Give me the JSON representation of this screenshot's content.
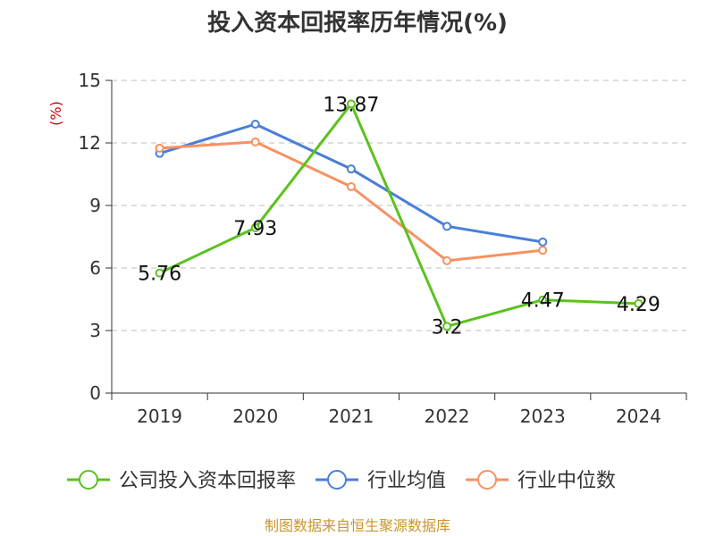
{
  "chart_data": {
    "type": "line",
    "title": "投入资本回报率历年情况(%)",
    "ylabel": "(%)",
    "categories": [
      "2019",
      "2020",
      "2021",
      "2022",
      "2023",
      "2024"
    ],
    "ylim": [
      0,
      15
    ],
    "yticks": [
      "0",
      "3",
      "6",
      "9",
      "12",
      "15"
    ],
    "grid": true,
    "legend_position": "bottom",
    "series": [
      {
        "name": "公司投入资本回报率",
        "color": "#5bc21e",
        "values": [
          5.76,
          7.93,
          13.87,
          3.2,
          4.47,
          4.29
        ],
        "labels": [
          "5.76",
          "7.93",
          "13.87",
          "3.2",
          "4.47",
          "4.29"
        ]
      },
      {
        "name": "行业均值",
        "color": "#4a7fd8",
        "values": [
          11.5,
          12.9,
          10.75,
          8.0,
          7.25,
          null
        ]
      },
      {
        "name": "行业中位数",
        "color": "#f79161",
        "values": [
          11.75,
          12.05,
          9.9,
          6.35,
          6.85,
          null
        ]
      }
    ]
  },
  "source": "制图数据来自恒生聚源数据库"
}
